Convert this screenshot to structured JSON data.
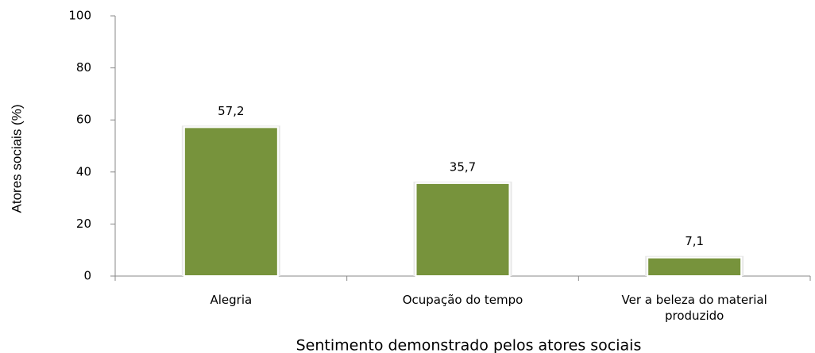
{
  "chart_data": {
    "type": "bar",
    "categories": [
      "Alegria",
      "Ocupação do tempo",
      "Ver a beleza do material produzido"
    ],
    "values": [
      57.2,
      35.7,
      7.1
    ],
    "value_labels": [
      "57,2",
      "35,7",
      "7,1"
    ],
    "color": "#77933c",
    "ylim": [
      0,
      100
    ],
    "yticks": [
      0,
      20,
      40,
      60,
      80,
      100
    ],
    "ylabel": "Atores  sociais (%)",
    "xlabel": "Sentimento demonstrado pelos atores sociais",
    "grid": false
  }
}
